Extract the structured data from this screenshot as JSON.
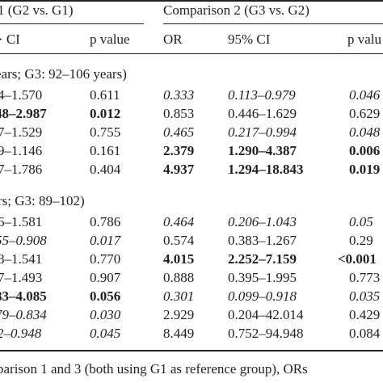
{
  "header": {
    "group1": "1 (G2 vs. G1)",
    "group2": "Comparison 2 (G3 vs. G2)",
    "cols": [
      "CI",
      "p value",
      "OR",
      "95% CI",
      "p valu"
    ]
  },
  "section1": {
    "label": "ears; G3: 92–106 years)"
  },
  "section2": {
    "label": "rs; G3: 89–102)"
  },
  "rows": [
    [
      "4–1.570",
      "0.611",
      "0.333",
      "0.113–0.979",
      "0.046"
    ],
    [
      "48–2.987",
      "0.012",
      "0.853",
      "0.446–1.629",
      "0.629"
    ],
    [
      "7–1.529",
      "0.755",
      "0.465",
      "0.217–0.994",
      "0.048"
    ],
    [
      "9–1.146",
      "0.161",
      "2.379",
      "1.290–4.387",
      "0.006"
    ],
    [
      "7–1.786",
      "0.404",
      "4.937",
      "1.294–18.843",
      "0.019"
    ],
    [
      "6–1.581",
      "0.786",
      "0.464",
      "0.206–1.043",
      "0.05"
    ],
    [
      "55–0.908",
      "0.017",
      "0.574",
      "0.383–1.267",
      "0.29"
    ],
    [
      "8–1.541",
      "0.770",
      "4.015",
      "2.252–7.159",
      "<0.001"
    ],
    [
      "7–1.493",
      "0.907",
      "0.888",
      "0.395–1.995",
      "0.773"
    ],
    [
      "83–4.085",
      "0.056",
      "0.301",
      "0.099–0.918",
      "0.035"
    ],
    [
      "79–0.834",
      "0.030",
      "2.929",
      "0.204–42.014",
      "0.429"
    ],
    [
      "2–0.948",
      "0.045",
      "8.449",
      "0.752–94.948",
      "0.084"
    ]
  ],
  "footnote": "parison 1 and 3 (both using G1 as reference group), ORs"
}
